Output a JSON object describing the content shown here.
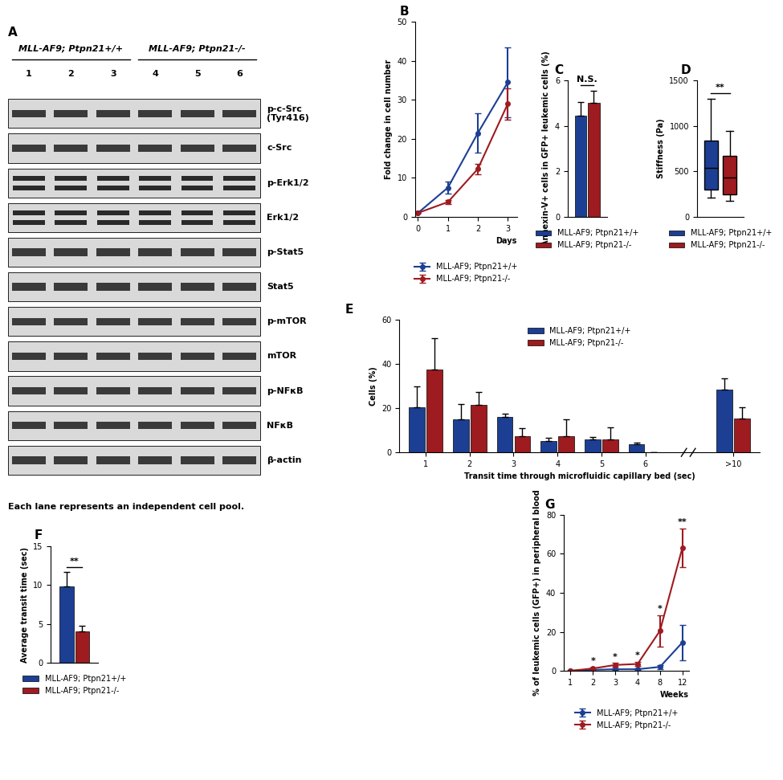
{
  "blot": {
    "title": "A",
    "groups": [
      {
        "label": "MLL-AF9; Ptpn21+/+",
        "lanes": [
          "1",
          "2",
          "3"
        ]
      },
      {
        "label": "MLL-AF9; Ptpn21-/-",
        "lanes": [
          "4",
          "5",
          "6"
        ]
      }
    ],
    "rows": [
      "p-c-Src\n(Tyr416)",
      "c-Src",
      "p-Erk1/2",
      "Erk1/2",
      "p-Stat5",
      "Stat5",
      "p-mTOR",
      "mTOR",
      "p-NFκB",
      "NFκB",
      "β-actin"
    ],
    "caption": "Each lane represents an independent cell pool."
  },
  "chart_data": [
    {
      "type": "line",
      "title": "B",
      "y_label": "Fold change in cell number",
      "x_label": "Days",
      "x": [
        0,
        1,
        2,
        3
      ],
      "xlim": [
        -0.1,
        3.3
      ],
      "xticks": [
        0,
        1,
        2,
        3
      ],
      "ylim": [
        0,
        50
      ],
      "yticks": [
        0,
        10,
        20,
        30,
        40,
        50
      ],
      "legend": "below",
      "series": [
        {
          "name": "MLL-AF9; Ptpn21+/+",
          "color": "#1c3f94",
          "marker": "o",
          "values": [
            1,
            7.5,
            21.5,
            34.5
          ],
          "errors": [
            0,
            1.5,
            5,
            9
          ]
        },
        {
          "name": "MLL-AF9; Ptpn21-/-",
          "color": "#9e1b1f",
          "marker": "o",
          "values": [
            1,
            3.8,
            12.3,
            29
          ],
          "errors": [
            0,
            0.5,
            1.3,
            4
          ]
        }
      ]
    },
    {
      "type": "bar",
      "title": "C",
      "y_label": "Annexin-V+ cells in GFP+ leukemic cells (%)",
      "categories": [
        null
      ],
      "ylim": [
        0,
        6
      ],
      "yticks": [
        0,
        2,
        4,
        6
      ],
      "tick_labels": "y",
      "legend": "below",
      "annotation": "N.S.",
      "series": [
        {
          "name": "MLL-AF9; Ptpn21+/+",
          "color": "#1c3f94",
          "values": [
            4.45
          ],
          "errors": [
            0.6
          ]
        },
        {
          "name": "MLL-AF9; Ptpn21-/-",
          "color": "#9e1b1f",
          "values": [
            5.0
          ],
          "errors": [
            0.55
          ]
        }
      ]
    },
    {
      "type": "box",
      "title": "D",
      "y_label": "Stiffness (Pa)",
      "ylim": [
        0,
        1500
      ],
      "yticks": [
        0,
        500,
        1000,
        1500
      ],
      "tick_labels": "y",
      "legend": "below",
      "annotation": "**",
      "series": [
        {
          "name": "MLL-AF9; Ptpn21+/+",
          "color": "#1c3f94",
          "min": 210,
          "q1": 300,
          "median": 540,
          "q3": 840,
          "max": 1300
        },
        {
          "name": "MLL-AF9; Ptpn21-/-",
          "color": "#9e1b1f",
          "min": 180,
          "q1": 250,
          "median": 430,
          "q3": 670,
          "max": 940
        }
      ]
    },
    {
      "type": "bar",
      "title": "E",
      "y_label": "Cells (%)",
      "x_label": "Transit time through microfluidic capillary bed (sec)",
      "categories": [
        "1",
        "2",
        "3",
        "4",
        "5",
        "6",
        null,
        ">10"
      ],
      "ylim": [
        0,
        60
      ],
      "yticks": [
        0,
        20,
        40,
        60
      ],
      "legend": "upper center",
      "series": [
        {
          "name": "MLL-AF9; Ptpn21+/+",
          "color": "#1c3f94",
          "values": [
            20.5,
            15,
            16,
            5,
            6,
            3.8,
            null,
            28.5
          ],
          "errors": [
            9.5,
            7,
            1.5,
            1.5,
            1,
            0.8,
            null,
            5
          ]
        },
        {
          "name": "MLL-AF9; Ptpn21-/-",
          "color": "#9e1b1f",
          "values": [
            37.5,
            21.5,
            7.5,
            7.5,
            6,
            0,
            null,
            15.5
          ],
          "errors": [
            14,
            6,
            3.5,
            7.5,
            5.5,
            0,
            null,
            5
          ]
        }
      ]
    },
    {
      "type": "bar",
      "title": "F",
      "y_label": "Average transit time (sec)",
      "categories": [
        null
      ],
      "ylim": [
        0,
        15
      ],
      "yticks": [
        0,
        5,
        10,
        15
      ],
      "tick_labels": "y",
      "legend": "below",
      "annotation": "**",
      "series": [
        {
          "name": "MLL-AF9; Ptpn21+/+",
          "color": "#1c3f94",
          "values": [
            9.8
          ],
          "errors": [
            1.9
          ]
        },
        {
          "name": "MLL-AF9; Ptpn21-/-",
          "color": "#9e1b1f",
          "values": [
            4.1
          ],
          "errors": [
            0.7
          ]
        }
      ]
    },
    {
      "type": "line",
      "title": "G",
      "y_label": "% of leukemic cells (GFP+) in peripheral blood",
      "x_label": "Weeks",
      "categories": [
        "1",
        "2",
        "3",
        "4",
        "8",
        "12"
      ],
      "ylim": [
        0,
        80
      ],
      "yticks": [
        0,
        20,
        40,
        60,
        80
      ],
      "legend": "below",
      "annotations": [
        {
          "category": "2",
          "text": "*"
        },
        {
          "category": "3",
          "text": "*"
        },
        {
          "category": "4",
          "text": "*"
        },
        {
          "category": "8",
          "text": "*"
        },
        {
          "category": "12",
          "text": "**"
        }
      ],
      "series": [
        {
          "name": "MLL-AF9; Ptpn21+/+",
          "color": "#1c3f94",
          "marker": "o",
          "values": [
            0,
            0.5,
            0.8,
            0.8,
            2,
            14.5
          ],
          "errors": [
            0,
            0.3,
            0.3,
            0.3,
            1,
            9
          ]
        },
        {
          "name": "MLL-AF9; Ptpn21-/-",
          "color": "#9e1b1f",
          "marker": "o",
          "values": [
            0,
            1.2,
            3,
            3.5,
            20.5,
            63
          ],
          "errors": [
            0,
            0.5,
            1,
            1,
            8,
            10
          ]
        }
      ]
    }
  ]
}
